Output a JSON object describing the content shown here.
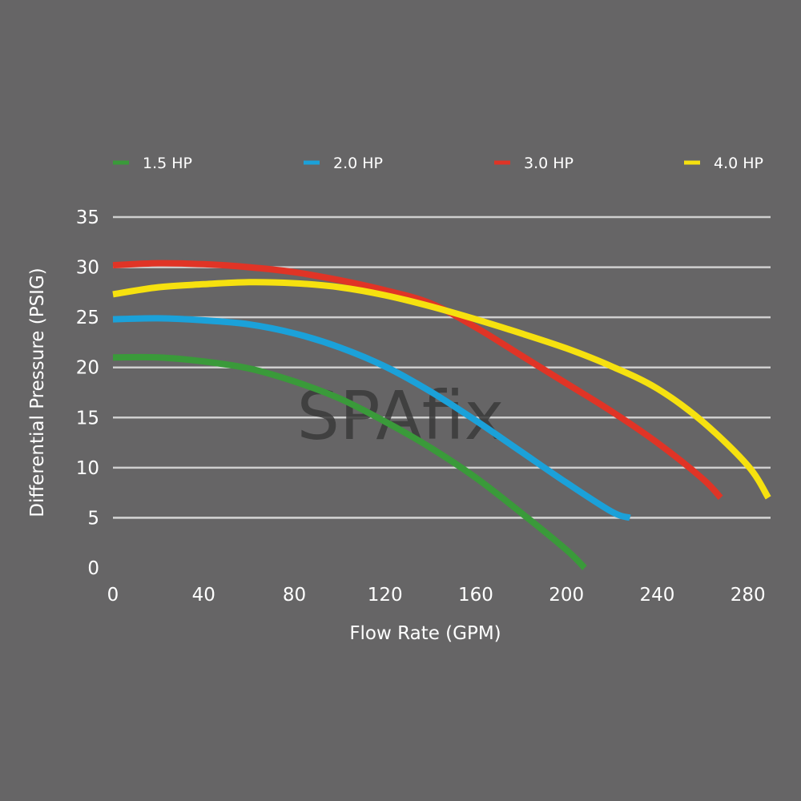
{
  "chart_data": {
    "type": "line",
    "xlabel": "Flow Rate (GPM)",
    "ylabel": "Differential Pressure (PSIG)",
    "xlim": [
      0,
      290
    ],
    "ylim": [
      0,
      35
    ],
    "x_ticks": [
      0,
      40,
      80,
      120,
      160,
      200,
      240,
      280
    ],
    "y_ticks": [
      0,
      5,
      10,
      15,
      20,
      25,
      30,
      35
    ],
    "grid": "horizontal",
    "legend_position": "top",
    "watermark": "SPAfix",
    "series": [
      {
        "name": "1.5 HP",
        "color": "#3a9a3a",
        "points": [
          [
            0,
            21
          ],
          [
            20,
            21
          ],
          [
            40,
            20.6
          ],
          [
            60,
            19.9
          ],
          [
            80,
            18.6
          ],
          [
            100,
            16.9
          ],
          [
            120,
            14.6
          ],
          [
            140,
            12.0
          ],
          [
            160,
            9.0
          ],
          [
            180,
            5.5
          ],
          [
            200,
            1.8
          ],
          [
            208,
            0
          ]
        ]
      },
      {
        "name": "2.0 HP",
        "color": "#1ba1d9",
        "points": [
          [
            0,
            24.8
          ],
          [
            20,
            24.9
          ],
          [
            40,
            24.7
          ],
          [
            60,
            24.3
          ],
          [
            80,
            23.4
          ],
          [
            100,
            22.0
          ],
          [
            120,
            20.1
          ],
          [
            140,
            17.6
          ],
          [
            160,
            14.7
          ],
          [
            180,
            11.6
          ],
          [
            200,
            8.5
          ],
          [
            220,
            5.6
          ],
          [
            228,
            5
          ]
        ]
      },
      {
        "name": "3.0 HP",
        "color": "#e03426",
        "points": [
          [
            0,
            30.2
          ],
          [
            20,
            30.4
          ],
          [
            40,
            30.3
          ],
          [
            60,
            30.0
          ],
          [
            80,
            29.5
          ],
          [
            100,
            28.7
          ],
          [
            120,
            27.7
          ],
          [
            140,
            26.4
          ],
          [
            160,
            24.0
          ],
          [
            180,
            21.2
          ],
          [
            200,
            18.4
          ],
          [
            220,
            15.6
          ],
          [
            240,
            12.5
          ],
          [
            260,
            8.9
          ],
          [
            268,
            7
          ]
        ]
      },
      {
        "name": "4.0 HP",
        "color": "#f6e10f",
        "points": [
          [
            0,
            27.3
          ],
          [
            20,
            28.0
          ],
          [
            40,
            28.3
          ],
          [
            60,
            28.5
          ],
          [
            80,
            28.4
          ],
          [
            100,
            28.0
          ],
          [
            120,
            27.2
          ],
          [
            140,
            26.1
          ],
          [
            160,
            24.8
          ],
          [
            180,
            23.4
          ],
          [
            200,
            21.9
          ],
          [
            220,
            20.1
          ],
          [
            240,
            17.9
          ],
          [
            260,
            14.6
          ],
          [
            280,
            10.2
          ],
          [
            289,
            7
          ]
        ]
      }
    ]
  }
}
